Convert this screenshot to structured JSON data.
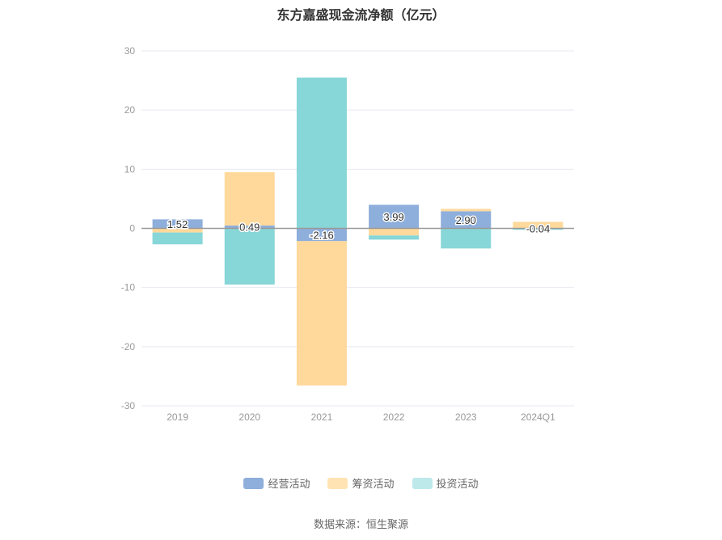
{
  "chart_data": {
    "type": "bar",
    "stacked": true,
    "title": "东方嘉盛现金流净额（亿元）",
    "categories": [
      "2019",
      "2020",
      "2021",
      "2022",
      "2023",
      "2024Q1"
    ],
    "ylim": [
      -30,
      30
    ],
    "yticks": [
      30,
      20,
      10,
      0,
      -10,
      -20,
      -30
    ],
    "grid": true,
    "legend_position": "bottom",
    "series": [
      {
        "name": "经营活动",
        "color": "#8eaedb",
        "values": [
          1.52,
          0.49,
          -2.16,
          3.99,
          2.9,
          -0.04
        ],
        "show_labels": true
      },
      {
        "name": "筹资活动",
        "color": "#ffd99b",
        "values": [
          -0.7,
          9.0,
          -24.4,
          -1.2,
          0.4,
          1.1
        ],
        "show_labels": false
      },
      {
        "name": "投资活动",
        "color": "#87d6d8",
        "values": [
          -2.0,
          -9.5,
          25.5,
          -0.7,
          -3.4,
          -0.2
        ],
        "show_labels": false
      }
    ]
  },
  "source": "数据来源：恒生聚源"
}
